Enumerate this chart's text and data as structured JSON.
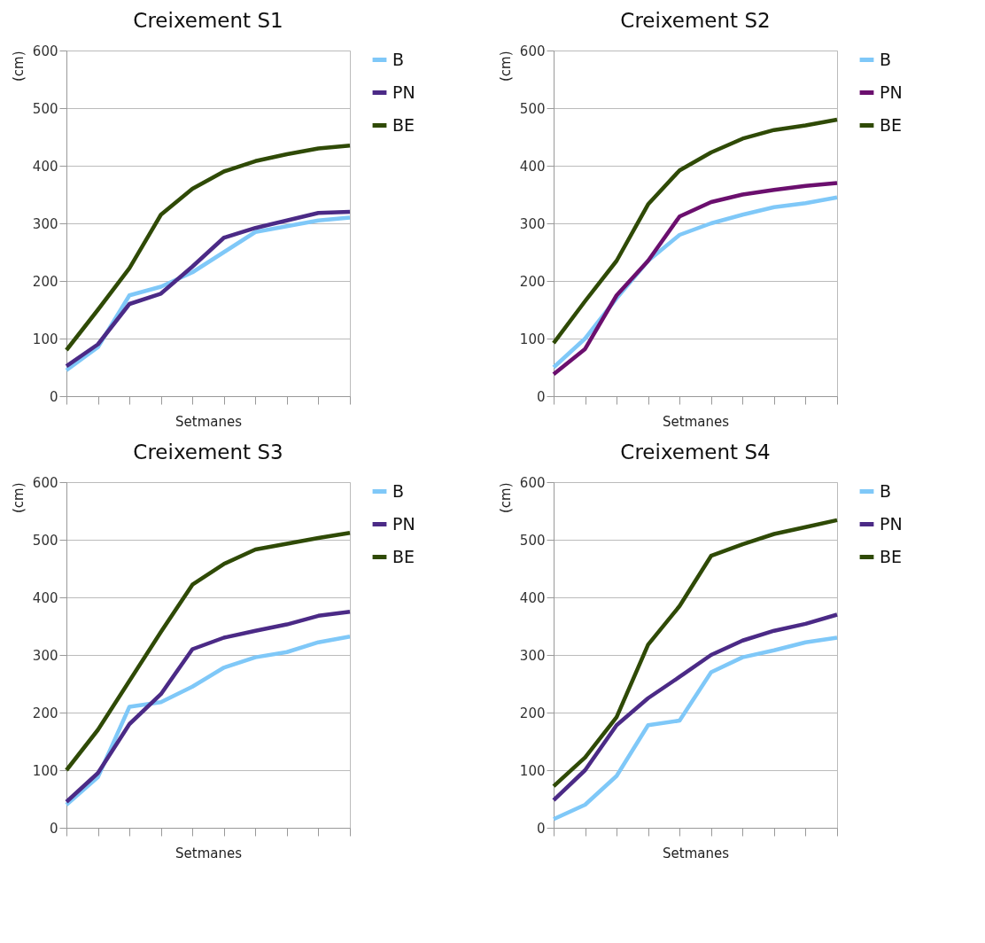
{
  "chart_data": [
    {
      "type": "line",
      "title": "Creixement S1",
      "xlabel": "Setmanes",
      "ylabel": "(cm)",
      "categories": [
        null,
        null,
        null,
        null,
        null,
        null,
        null,
        null,
        null,
        null
      ],
      "ylim": [
        0,
        600
      ],
      "yticks": [
        0,
        100,
        200,
        300,
        400,
        500,
        600
      ],
      "grid": "y",
      "legend": "right",
      "tick_labels": "y",
      "series": [
        {
          "name": "B",
          "color": "#7fc8f8",
          "values": [
            45,
            85,
            175,
            190,
            215,
            250,
            285,
            295,
            305,
            310
          ]
        },
        {
          "name": "PN",
          "color": "#4b2a86",
          "values": [
            52,
            90,
            160,
            178,
            225,
            275,
            292,
            305,
            318,
            320
          ]
        },
        {
          "name": "BE",
          "color": "#2f4a06",
          "values": [
            80,
            150,
            222,
            315,
            360,
            390,
            408,
            420,
            430,
            435
          ]
        }
      ]
    },
    {
      "type": "line",
      "title": "Creixement S2",
      "xlabel": "Setmanes",
      "ylabel": "(cm)",
      "categories": [
        null,
        null,
        null,
        null,
        null,
        null,
        null,
        null,
        null,
        null
      ],
      "ylim": [
        0,
        600
      ],
      "yticks": [
        0,
        100,
        200,
        300,
        400,
        500,
        600
      ],
      "grid": "y",
      "legend": "right",
      "tick_labels": "y",
      "series": [
        {
          "name": "B",
          "color": "#7fc8f8",
          "values": [
            50,
            100,
            170,
            235,
            280,
            300,
            315,
            328,
            335,
            345
          ]
        },
        {
          "name": "PN",
          "color": "#6b0f6e",
          "values": [
            38,
            82,
            175,
            235,
            312,
            337,
            350,
            358,
            365,
            370
          ]
        },
        {
          "name": "BE",
          "color": "#2f4a06",
          "values": [
            92,
            165,
            235,
            333,
            392,
            423,
            447,
            462,
            470,
            480
          ]
        }
      ]
    },
    {
      "type": "line",
      "title": "Creixement S3",
      "xlabel": "Setmanes",
      "ylabel": "(cm)",
      "categories": [
        null,
        null,
        null,
        null,
        null,
        null,
        null,
        null,
        null,
        null
      ],
      "ylim": [
        0,
        600
      ],
      "yticks": [
        0,
        100,
        200,
        300,
        400,
        500,
        600
      ],
      "grid": "y",
      "legend": "right",
      "tick_labels": "y",
      "series": [
        {
          "name": "B",
          "color": "#7fc8f8",
          "values": [
            40,
            88,
            210,
            218,
            245,
            278,
            296,
            305,
            322,
            332
          ]
        },
        {
          "name": "PN",
          "color": "#4b2a86",
          "values": [
            45,
            95,
            180,
            232,
            310,
            330,
            342,
            353,
            368,
            375
          ]
        },
        {
          "name": "BE",
          "color": "#2f4a06",
          "values": [
            100,
            170,
            255,
            340,
            422,
            458,
            483,
            493,
            503,
            512
          ]
        }
      ]
    },
    {
      "type": "line",
      "title": "Creixement S4",
      "xlabel": "Setmanes",
      "ylabel": "(cm)",
      "categories": [
        null,
        null,
        null,
        null,
        null,
        null,
        null,
        null,
        null,
        null
      ],
      "ylim": [
        0,
        600
      ],
      "yticks": [
        0,
        100,
        200,
        300,
        400,
        500,
        600
      ],
      "grid": "y",
      "legend": "right",
      "tick_labels": "y",
      "series": [
        {
          "name": "B",
          "color": "#7fc8f8",
          "values": [
            15,
            40,
            90,
            178,
            186,
            270,
            296,
            308,
            322,
            330
          ]
        },
        {
          "name": "PN",
          "color": "#4b2a86",
          "values": [
            48,
            100,
            178,
            225,
            262,
            300,
            325,
            342,
            354,
            370
          ]
        },
        {
          "name": "BE",
          "color": "#2f4a06",
          "values": [
            72,
            122,
            192,
            318,
            385,
            472,
            492,
            510,
            522,
            534
          ]
        }
      ]
    }
  ]
}
